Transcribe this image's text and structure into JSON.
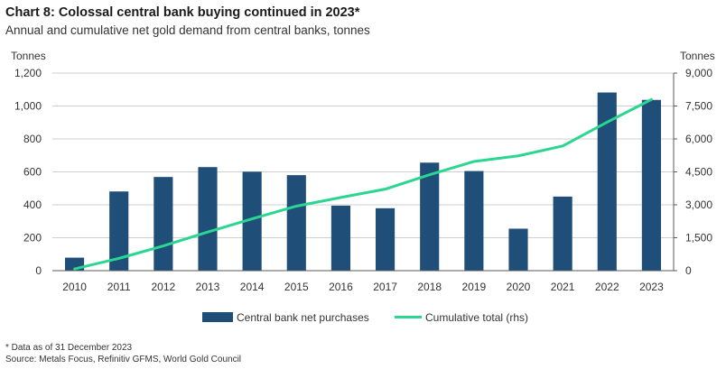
{
  "header": {
    "title": "Chart 8: Colossal central bank buying continued in 2023*",
    "subtitle": "Annual and cumulative net gold demand from central banks, tonnes"
  },
  "axes": {
    "left_unit": "Tonnes",
    "right_unit": "Tonnes",
    "left_ticks": [
      "0",
      "200",
      "400",
      "600",
      "800",
      "1,000",
      "1,200"
    ],
    "right_ticks": [
      "0",
      "1,500",
      "3,000",
      "4,500",
      "6,000",
      "7,500",
      "9,000"
    ]
  },
  "footnotes": {
    "note": "* Data as of 31 December 2023",
    "source": "Source: Metals Focus, Refinitiv GFMS, World Gold Council"
  },
  "colors": {
    "bar": "#1f4e79",
    "line": "#2bd690",
    "grid": "#bfbfbf",
    "axis": "#595959"
  },
  "chart_data": {
    "type": "bar",
    "title": "Chart 8: Colossal central bank buying continued in 2023*",
    "subtitle": "Annual and cumulative net gold demand from central banks, tonnes",
    "categories": [
      "2010",
      "2011",
      "2012",
      "2013",
      "2014",
      "2015",
      "2016",
      "2017",
      "2018",
      "2019",
      "2020",
      "2021",
      "2022",
      "2023"
    ],
    "series": [
      {
        "name": "Central bank net purchases",
        "type": "bar",
        "axis": "left",
        "values": [
          79,
          481,
          569,
          629,
          601,
          580,
          395,
          379,
          656,
          605,
          255,
          450,
          1082,
          1037
        ]
      },
      {
        "name": "Cumulative total (rhs)",
        "type": "line",
        "axis": "right",
        "values": [
          79,
          560,
          1129,
          1758,
          2359,
          2939,
          3334,
          3713,
          4369,
          4974,
          5229,
          5679,
          6761,
          7798
        ]
      }
    ],
    "ylabel": "Tonnes",
    "y2label": "Tonnes",
    "ylim": [
      0,
      1200
    ],
    "y2lim": [
      0,
      9000
    ],
    "grid": true,
    "legend": "bottom"
  }
}
